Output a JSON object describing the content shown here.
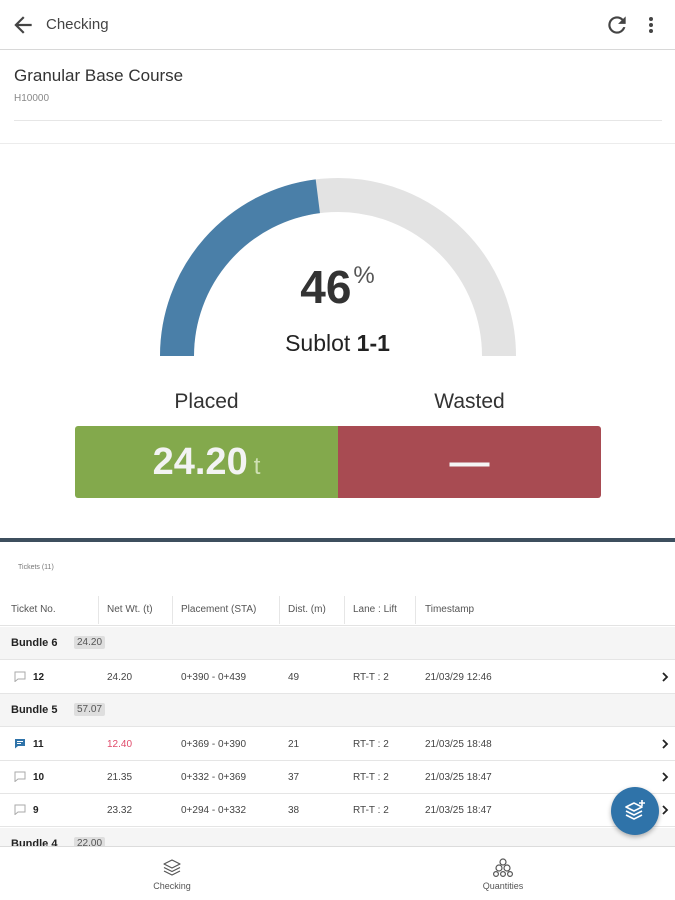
{
  "appbar": {
    "title": "Checking",
    "back_icon": "arrow-left-icon",
    "refresh_icon": "refresh-icon",
    "more_icon": "more-vert-icon"
  },
  "item": {
    "title": "Granular Base Course",
    "code": "H10000"
  },
  "gauge": {
    "percent": 46,
    "percent_text": "46",
    "percent_sign": "%",
    "sublot_label": "Sublot",
    "sublot_value": "1-1",
    "fill_color": "#4a7fa8",
    "track_color": "#e3e3e3"
  },
  "summary": {
    "placed_label": "Placed",
    "placed_value": "24.20",
    "placed_unit": "t",
    "placed_color": "#83a94c",
    "wasted_label": "Wasted",
    "wasted_value": "—",
    "wasted_color": "#a84b52"
  },
  "tickets": {
    "label": "Tickets (11)",
    "columns": [
      "Ticket No.",
      "Net Wt. (t)",
      "Placement (STA)",
      "Dist. (m)",
      "Lane : Lift",
      "Timestamp"
    ],
    "bundles": [
      {
        "name": "Bundle 6",
        "total": "24.20",
        "rows": [
          {
            "no": "12",
            "wt": "24.20",
            "placement": "0+390 - 0+439",
            "dist": "49",
            "lane": "RT-T : 2",
            "ts": "21/03/29 12:46",
            "comment": false,
            "flag": false
          }
        ]
      },
      {
        "name": "Bundle 5",
        "total": "57.07",
        "rows": [
          {
            "no": "11",
            "wt": "12.40",
            "placement": "0+369 - 0+390",
            "dist": "21",
            "lane": "RT-T : 2",
            "ts": "21/03/25 18:48",
            "comment": true,
            "flag": true
          },
          {
            "no": "10",
            "wt": "21.35",
            "placement": "0+332 - 0+369",
            "dist": "37",
            "lane": "RT-T : 2",
            "ts": "21/03/25 18:47",
            "comment": false,
            "flag": false
          },
          {
            "no": "9",
            "wt": "23.32",
            "placement": "0+294 - 0+332",
            "dist": "38",
            "lane": "RT-T : 2",
            "ts": "21/03/25 18:47",
            "comment": false,
            "flag": false
          }
        ]
      },
      {
        "name": "Bundle 4",
        "total": "22.00",
        "rows": []
      }
    ]
  },
  "fab": {
    "icon": "add-layer-icon"
  },
  "bottomnav": [
    {
      "label": "Checking",
      "icon": "layers-icon"
    },
    {
      "label": "Quantities",
      "icon": "stack-icon"
    }
  ]
}
